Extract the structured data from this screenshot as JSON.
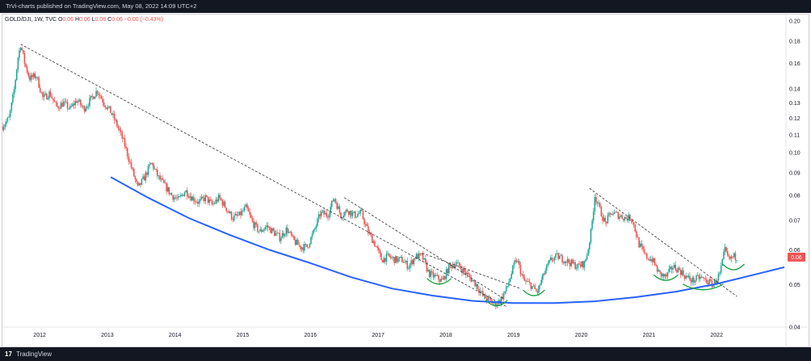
{
  "header": {
    "text": "TrVi-charts published on TradingView.com, May 08, 2022 14:09 UTC+2"
  },
  "legend": {
    "symbol": "GOLD/DJI, 1W, TVC",
    "o_label": "O",
    "o_value": "0.06",
    "h_label": "H",
    "h_value": "0.06",
    "l_label": "L",
    "l_value": "0.06",
    "c_label": "C",
    "c_value": "0.06",
    "change": "−0.00 (−0.43%)"
  },
  "footer": {
    "logo": "17",
    "brand": "TradingView"
  },
  "colors": {
    "up": "#26a69a",
    "down": "#ef5350",
    "curve": "#2962ff",
    "arc": "#1b9e3e",
    "trend": "#333333",
    "price_tag": "#ef5350"
  },
  "chart_data": {
    "type": "candlestick",
    "title": "GOLD/DJI, 1W, TVC",
    "y_scale": "log",
    "ylim": [
      0.04,
      0.2
    ],
    "x_range": [
      2011.45,
      2023.0
    ],
    "y_ticks": [
      "0.20",
      "0.18",
      "0.16",
      "0.14",
      "0.13",
      "0.12",
      "0.11",
      "0.10",
      "0.09",
      "0.08",
      "0.07",
      "0.06",
      "0.05",
      "0.04"
    ],
    "y_tick_values": [
      0.2,
      0.18,
      0.16,
      0.14,
      0.13,
      0.12,
      0.11,
      0.1,
      0.09,
      0.08,
      0.07,
      0.06,
      0.05,
      0.04
    ],
    "x_ticks": [
      "2012",
      "2013",
      "2014",
      "2015",
      "2016",
      "2017",
      "2018",
      "2019",
      "2020",
      "2021",
      "2022"
    ],
    "x_tick_values": [
      2012,
      2013,
      2014,
      2015,
      2016,
      2017,
      2018,
      2019,
      2020,
      2021,
      2022
    ],
    "last_price_label": "0.06",
    "last_price": 0.0578,
    "price_path": [
      [
        2011.45,
        0.115
      ],
      [
        2011.55,
        0.12
      ],
      [
        2011.62,
        0.138
      ],
      [
        2011.68,
        0.165
      ],
      [
        2011.72,
        0.177
      ],
      [
        2011.78,
        0.16
      ],
      [
        2011.85,
        0.148
      ],
      [
        2011.95,
        0.15
      ],
      [
        2012.05,
        0.133
      ],
      [
        2012.15,
        0.137
      ],
      [
        2012.25,
        0.127
      ],
      [
        2012.35,
        0.13
      ],
      [
        2012.45,
        0.126
      ],
      [
        2012.55,
        0.132
      ],
      [
        2012.65,
        0.126
      ],
      [
        2012.75,
        0.132
      ],
      [
        2012.85,
        0.139
      ],
      [
        2012.95,
        0.13
      ],
      [
        2013.05,
        0.124
      ],
      [
        2013.15,
        0.115
      ],
      [
        2013.25,
        0.105
      ],
      [
        2013.35,
        0.093
      ],
      [
        2013.45,
        0.083
      ],
      [
        2013.55,
        0.088
      ],
      [
        2013.65,
        0.095
      ],
      [
        2013.75,
        0.088
      ],
      [
        2013.85,
        0.084
      ],
      [
        2013.95,
        0.08
      ],
      [
        2014.05,
        0.078
      ],
      [
        2014.15,
        0.082
      ],
      [
        2014.25,
        0.079
      ],
      [
        2014.35,
        0.077
      ],
      [
        2014.45,
        0.079
      ],
      [
        2014.55,
        0.076
      ],
      [
        2014.65,
        0.079
      ],
      [
        2014.75,
        0.075
      ],
      [
        2014.85,
        0.071
      ],
      [
        2014.95,
        0.072
      ],
      [
        2015.05,
        0.075
      ],
      [
        2015.15,
        0.069
      ],
      [
        2015.25,
        0.066
      ],
      [
        2015.35,
        0.068
      ],
      [
        2015.45,
        0.066
      ],
      [
        2015.55,
        0.064
      ],
      [
        2015.65,
        0.067
      ],
      [
        2015.75,
        0.063
      ],
      [
        2015.85,
        0.061
      ],
      [
        2015.95,
        0.061
      ],
      [
        2016.05,
        0.066
      ],
      [
        2016.15,
        0.073
      ],
      [
        2016.25,
        0.072
      ],
      [
        2016.35,
        0.079
      ],
      [
        2016.45,
        0.072
      ],
      [
        2016.55,
        0.074
      ],
      [
        2016.65,
        0.072
      ],
      [
        2016.75,
        0.073
      ],
      [
        2016.85,
        0.066
      ],
      [
        2016.95,
        0.062
      ],
      [
        2017.05,
        0.057
      ],
      [
        2017.15,
        0.058
      ],
      [
        2017.25,
        0.057
      ],
      [
        2017.35,
        0.057
      ],
      [
        2017.45,
        0.055
      ],
      [
        2017.55,
        0.058
      ],
      [
        2017.65,
        0.058
      ],
      [
        2017.75,
        0.053
      ],
      [
        2017.85,
        0.052
      ],
      [
        2017.95,
        0.051
      ],
      [
        2018.05,
        0.055
      ],
      [
        2018.15,
        0.056
      ],
      [
        2018.25,
        0.054
      ],
      [
        2018.35,
        0.052
      ],
      [
        2018.45,
        0.05
      ],
      [
        2018.55,
        0.047
      ],
      [
        2018.65,
        0.046
      ],
      [
        2018.72,
        0.045
      ],
      [
        2018.8,
        0.046
      ],
      [
        2018.9,
        0.049
      ],
      [
        2019.0,
        0.055
      ],
      [
        2019.05,
        0.057
      ],
      [
        2019.15,
        0.051
      ],
      [
        2019.25,
        0.05
      ],
      [
        2019.35,
        0.048
      ],
      [
        2019.45,
        0.053
      ],
      [
        2019.55,
        0.057
      ],
      [
        2019.65,
        0.058
      ],
      [
        2019.75,
        0.057
      ],
      [
        2019.85,
        0.056
      ],
      [
        2019.95,
        0.055
      ],
      [
        2020.05,
        0.056
      ],
      [
        2020.1,
        0.06
      ],
      [
        2020.15,
        0.067
      ],
      [
        2020.2,
        0.08
      ],
      [
        2020.25,
        0.076
      ],
      [
        2020.35,
        0.069
      ],
      [
        2020.45,
        0.073
      ],
      [
        2020.55,
        0.072
      ],
      [
        2020.65,
        0.071
      ],
      [
        2020.75,
        0.071
      ],
      [
        2020.85,
        0.062
      ],
      [
        2020.95,
        0.058
      ],
      [
        2021.05,
        0.057
      ],
      [
        2021.15,
        0.053
      ],
      [
        2021.25,
        0.052
      ],
      [
        2021.35,
        0.055
      ],
      [
        2021.45,
        0.054
      ],
      [
        2021.55,
        0.052
      ],
      [
        2021.65,
        0.051
      ],
      [
        2021.75,
        0.052
      ],
      [
        2021.85,
        0.051
      ],
      [
        2021.95,
        0.05
      ],
      [
        2022.05,
        0.053
      ],
      [
        2022.12,
        0.06
      ],
      [
        2022.18,
        0.057
      ],
      [
        2022.25,
        0.058
      ],
      [
        2022.3,
        0.0578
      ]
    ],
    "trendlines": [
      [
        [
          2011.72,
          0.177
        ],
        [
          2018.9,
          0.0445
        ]
      ],
      [
        [
          2016.5,
          0.079
        ],
        [
          2018.85,
          0.0465
        ]
      ],
      [
        [
          2017.65,
          0.059
        ],
        [
          2019.1,
          0.049
        ]
      ],
      [
        [
          2020.12,
          0.083
        ],
        [
          2022.3,
          0.047
        ]
      ]
    ],
    "support_curve": [
      [
        2013.05,
        0.088
      ],
      [
        2013.6,
        0.079
      ],
      [
        2014.2,
        0.071
      ],
      [
        2014.8,
        0.065
      ],
      [
        2015.4,
        0.06
      ],
      [
        2016.0,
        0.056
      ],
      [
        2016.6,
        0.052
      ],
      [
        2017.2,
        0.049
      ],
      [
        2017.8,
        0.0472
      ],
      [
        2018.4,
        0.0459
      ],
      [
        2019.0,
        0.0454
      ],
      [
        2019.6,
        0.0454
      ],
      [
        2020.2,
        0.0458
      ],
      [
        2020.8,
        0.0468
      ],
      [
        2021.4,
        0.0482
      ],
      [
        2022.0,
        0.0502
      ],
      [
        2022.6,
        0.0529
      ],
      [
        2023.0,
        0.0548
      ]
    ],
    "arcs": [
      [
        2017.9,
        0.051,
        0.18
      ],
      [
        2018.75,
        0.0455,
        0.16
      ],
      [
        2019.3,
        0.048,
        0.16
      ],
      [
        2021.25,
        0.052,
        0.18
      ],
      [
        2021.8,
        0.0495,
        0.3
      ],
      [
        2022.25,
        0.055,
        0.16
      ]
    ]
  }
}
